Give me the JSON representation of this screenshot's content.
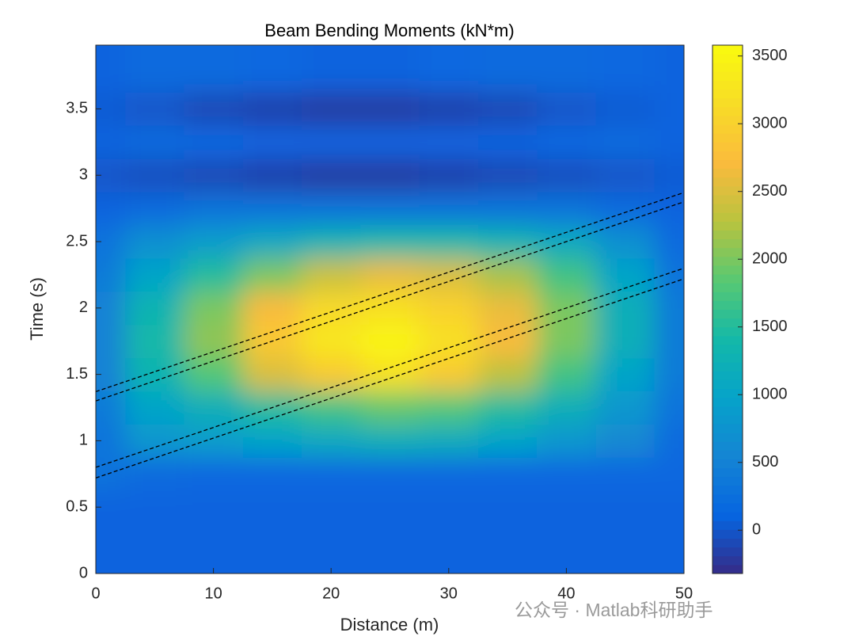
{
  "chart_data": {
    "type": "contour",
    "title": "Beam Bending Moments (kN*m)",
    "xlabel": "Distance (m)",
    "ylabel": "Time (s)",
    "xlim": [
      0,
      50
    ],
    "ylim": [
      0,
      3.98
    ],
    "xticks": [
      0,
      10,
      20,
      30,
      40,
      50
    ],
    "yticks": [
      0,
      0.5,
      1,
      1.5,
      2,
      2.5,
      3,
      3.5
    ],
    "colormap": "parula",
    "clim": [
      -320,
      3580
    ],
    "cticks": [
      0,
      500,
      1000,
      1500,
      2000,
      2500,
      3000,
      3500
    ],
    "x": [
      0,
      5,
      10,
      15,
      20,
      25,
      30,
      35,
      40,
      45,
      50
    ],
    "y": [
      0,
      0.25,
      0.5,
      0.75,
      1,
      1.25,
      1.5,
      1.75,
      2,
      2.25,
      2.5,
      2.75,
      3,
      3.25,
      3.5,
      3.75
    ],
    "z": [
      [
        100,
        100,
        100,
        100,
        100,
        100,
        100,
        100,
        100,
        100,
        100
      ],
      [
        100,
        100,
        100,
        100,
        100,
        100,
        100,
        100,
        100,
        100,
        100
      ],
      [
        100,
        100,
        100,
        100,
        100,
        100,
        100,
        100,
        100,
        100,
        100
      ],
      [
        300,
        200,
        150,
        150,
        150,
        150,
        150,
        150,
        150,
        150,
        150
      ],
      [
        300,
        800,
        900,
        1000,
        1100,
        1200,
        1150,
        1000,
        800,
        600,
        200
      ],
      [
        400,
        1000,
        1200,
        1500,
        1700,
        1900,
        1800,
        1500,
        1200,
        800,
        300
      ],
      [
        500,
        1300,
        1800,
        2500,
        2900,
        3200,
        2900,
        2300,
        1700,
        1000,
        400
      ],
      [
        500,
        1400,
        2100,
        2900,
        3300,
        3500,
        3200,
        2700,
        2000,
        1200,
        400
      ],
      [
        500,
        1300,
        2000,
        2700,
        3100,
        3200,
        3000,
        2600,
        2000,
        1200,
        400
      ],
      [
        400,
        1000,
        1500,
        2000,
        2400,
        2600,
        2500,
        2200,
        1700,
        1000,
        300
      ],
      [
        300,
        700,
        900,
        1100,
        1300,
        1400,
        1400,
        1300,
        1100,
        700,
        200
      ],
      [
        100,
        200,
        300,
        300,
        300,
        300,
        300,
        300,
        300,
        200,
        100
      ],
      [
        0,
        -50,
        -100,
        -150,
        -200,
        -200,
        -150,
        -100,
        -50,
        0,
        50
      ],
      [
        100,
        200,
        150,
        100,
        100,
        100,
        100,
        100,
        150,
        200,
        100
      ],
      [
        50,
        0,
        -100,
        -150,
        -200,
        -200,
        -150,
        -100,
        0,
        50,
        100
      ],
      [
        100,
        200,
        200,
        150,
        100,
        100,
        150,
        200,
        200,
        150,
        100
      ]
    ],
    "lines": [
      {
        "x": [
          0,
          50
        ],
        "y": [
          1.37,
          2.87
        ]
      },
      {
        "x": [
          0,
          50
        ],
        "y": [
          1.3,
          2.8
        ]
      },
      {
        "x": [
          0,
          50
        ],
        "y": [
          0.8,
          2.3
        ]
      },
      {
        "x": [
          0,
          50
        ],
        "y": [
          0.72,
          2.22
        ]
      }
    ],
    "line_color": "#000000",
    "watermark": "公众号 · Matlab科研助手"
  }
}
